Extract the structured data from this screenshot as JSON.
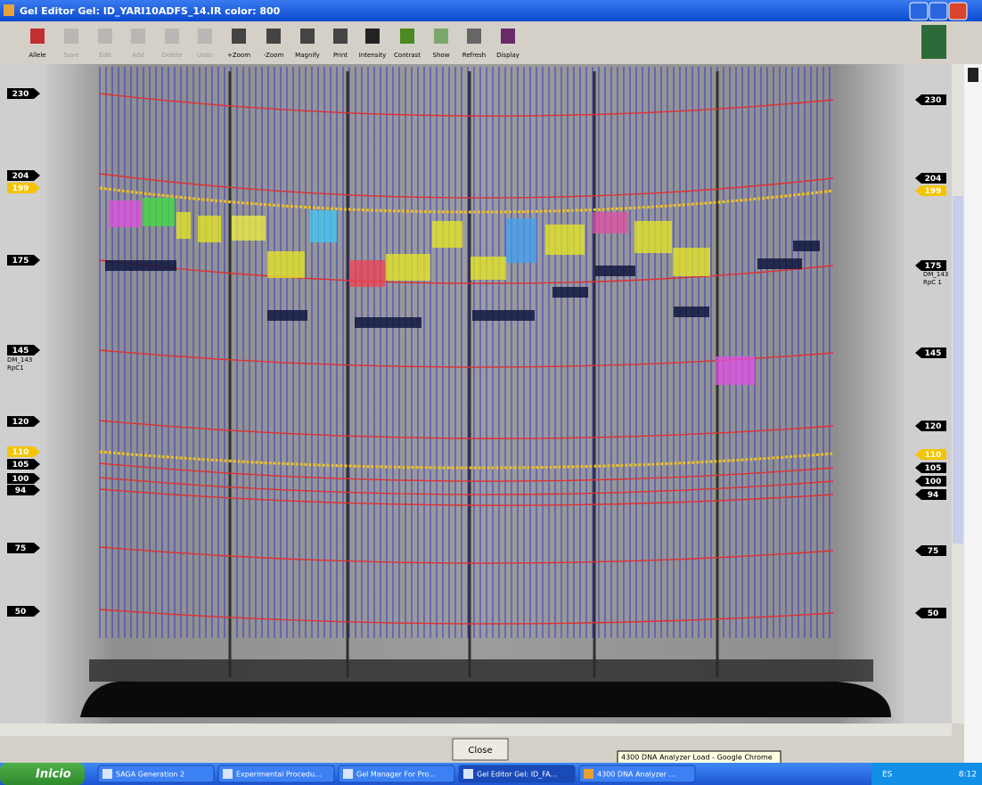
{
  "window": {
    "title": "Gel Editor Gel: ID_YARI10ADFS_14.IR color: 800"
  },
  "toolbar": [
    "Allele",
    "Save",
    "Edit",
    "Add",
    "Delete",
    "Undo",
    "+Zoom",
    "-Zoom",
    "Magnify",
    "Print",
    "Intensity",
    "Contrast",
    "Show",
    "Refresh",
    "Display"
  ],
  "left_markers": [
    {
      "label": "230",
      "style": "dark"
    },
    {
      "label": "204",
      "style": "dark"
    },
    {
      "label": "199",
      "style": "yellow"
    },
    {
      "label": "175",
      "style": "dark"
    },
    {
      "label": "145",
      "style": "dark"
    },
    {
      "label": "120",
      "style": "dark"
    },
    {
      "label": "110",
      "style": "yellow"
    },
    {
      "label": "105",
      "style": "dark"
    },
    {
      "label": "100",
      "style": "dark"
    },
    {
      "label": "94",
      "style": "dark"
    },
    {
      "label": "75",
      "style": "dark"
    },
    {
      "label": "50",
      "style": "dark"
    }
  ],
  "right_markers": [
    {
      "label": "230",
      "style": "dark"
    },
    {
      "label": "204",
      "style": "dark"
    },
    {
      "label": "199",
      "style": "yellow"
    },
    {
      "label": "175",
      "style": "dark"
    },
    {
      "label": "145",
      "style": "dark"
    },
    {
      "label": "120",
      "style": "dark"
    },
    {
      "label": "110",
      "style": "yellow"
    },
    {
      "label": "105",
      "style": "dark"
    },
    {
      "label": "100",
      "style": "dark"
    },
    {
      "label": "94",
      "style": "dark"
    },
    {
      "label": "75",
      "style": "dark"
    },
    {
      "label": "50",
      "style": "dark"
    }
  ],
  "left_annotation": [
    "DM_143",
    "RpC1"
  ],
  "right_annotation": [
    "DM_143",
    "RpC 1"
  ],
  "close_button": "Close",
  "tooltip": "4300 DNA Analyzer Load - Google Chrome",
  "taskbar": {
    "start": "Inicio",
    "items": [
      "SAGA Generation 2",
      "Experimental Procedu...",
      "Gel Manager For Pro...",
      "Gel Editor Gel: ID_FA...",
      "4300 DNA Analyzer ..."
    ],
    "tray": {
      "lang": "ES",
      "time": "8:12"
    }
  }
}
